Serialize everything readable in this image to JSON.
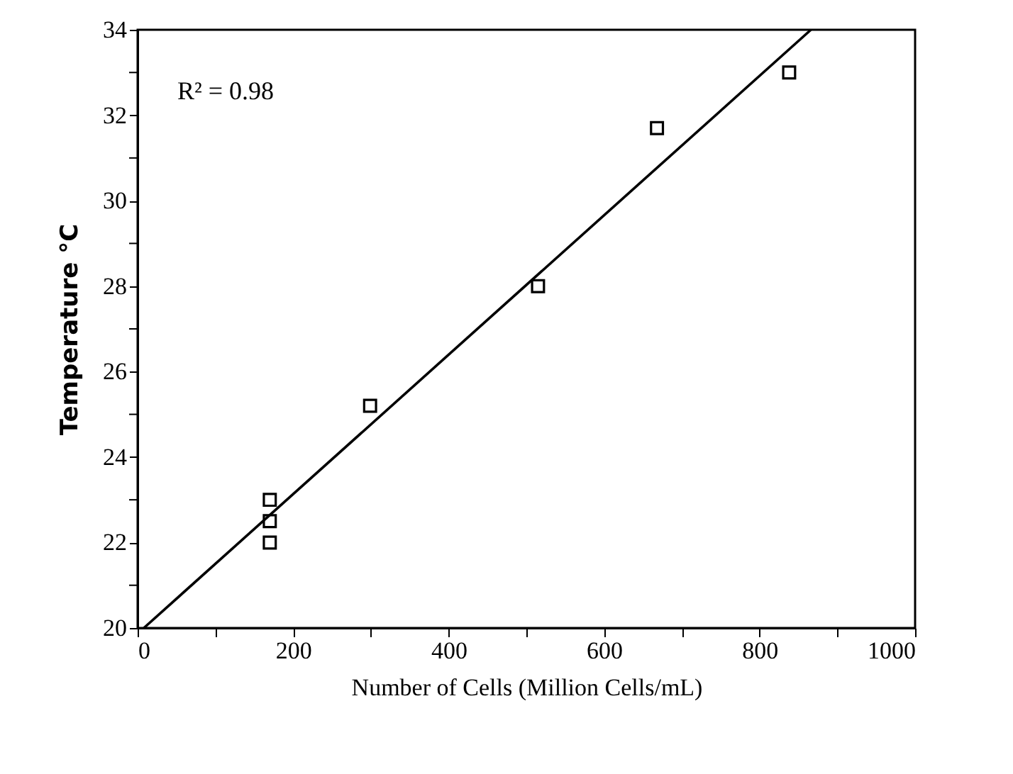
{
  "chart_data": {
    "type": "scatter",
    "xlabel": "Number of Cells (Million Cells/mL)",
    "ylabel": "Temperature  °C",
    "annotations": [
      "R² = 0.98"
    ],
    "xlim": [
      0,
      1000
    ],
    "ylim": [
      20,
      34
    ],
    "xticks": [
      0,
      {
        "value": 100,
        "label": null
      },
      200,
      {
        "value": 300,
        "label": null
      },
      400,
      {
        "value": 500,
        "label": null
      },
      600,
      {
        "value": 700,
        "label": null
      },
      800,
      {
        "value": 900,
        "label": null
      },
      1000
    ],
    "yticks": [
      20,
      {
        "value": 21,
        "label": null
      },
      22,
      {
        "value": 23,
        "label": null
      },
      24,
      {
        "value": 25,
        "label": null
      },
      26,
      {
        "value": 27,
        "label": null
      },
      28,
      {
        "value": 29,
        "label": null
      },
      30,
      {
        "value": 31,
        "label": null
      },
      32,
      {
        "value": 33,
        "label": null
      },
      34
    ],
    "grid": false,
    "marker": "square",
    "series": [
      {
        "color": "#000000",
        "x": [
          170,
          170,
          170,
          299,
          515,
          668,
          838
        ],
        "values": [
          23.0,
          22.5,
          22.0,
          25.2,
          28.0,
          31.7,
          33.0
        ]
      },
      {
        "type": "line",
        "color": "#000000",
        "marker": "none",
        "line_style": "solid",
        "x": [
          8,
          866
        ],
        "values": [
          20,
          34
        ]
      }
    ]
  }
}
